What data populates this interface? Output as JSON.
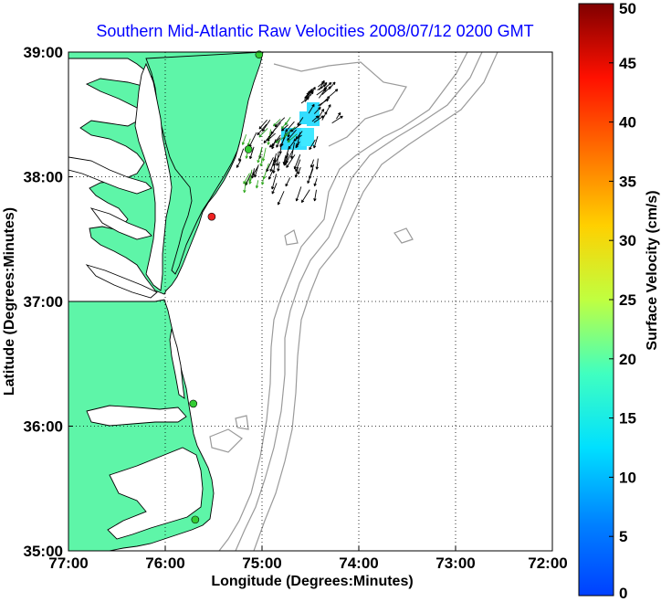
{
  "chart_data": {
    "type": "map",
    "title": "Southern Mid-Atlantic Raw Velocities 2008/07/12 0200 GMT",
    "xlabel": "Longitude (Degrees:Minutes)",
    "ylabel": "Latitude (Degrees:Minutes)",
    "x_ticks": [
      "77:00",
      "76:00",
      "75:00",
      "74:00",
      "73:00",
      "72:00"
    ],
    "y_ticks": [
      "39:00",
      "38:00",
      "37:00",
      "36:00",
      "35:00"
    ],
    "xlim_deg_west": [
      77,
      72
    ],
    "ylim_deg_north": [
      35,
      39
    ],
    "grid": "dotted",
    "land_color": "#5ef5a8",
    "coast_color": "#000000",
    "bathymetry_color": "#9a9a9a",
    "colorbar": {
      "label": "Surface Velocity (cm/s)",
      "ticks": [
        "0",
        "5",
        "10",
        "15",
        "20",
        "25",
        "30",
        "35",
        "40",
        "45",
        "50"
      ],
      "range": [
        0,
        50
      ],
      "colormap": "jet"
    },
    "stations": [
      {
        "lon": -75.03,
        "lat": 38.98,
        "color": "#33cc33"
      },
      {
        "lon": -75.14,
        "lat": 38.22,
        "color": "#33cc33"
      },
      {
        "lon": -75.52,
        "lat": 37.68,
        "color": "#ee2222"
      },
      {
        "lon": -75.71,
        "lat": 36.18,
        "color": "#33cc33"
      },
      {
        "lon": -75.69,
        "lat": 35.25,
        "color": "#33cc33"
      }
    ]
  }
}
